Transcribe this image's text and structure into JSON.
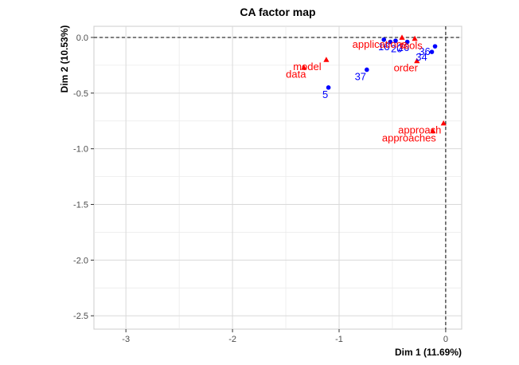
{
  "chart_data": {
    "type": "scatter",
    "title": "CA factor map",
    "xlabel": "Dim 1 (11.69%)",
    "ylabel": "Dim 2 (10.53%)",
    "xlim": [
      -3.3,
      0.15
    ],
    "ylim": [
      -2.62,
      0.1
    ],
    "x_ticks": [
      -3,
      -2,
      -1,
      0
    ],
    "y_ticks": [
      0.0,
      -0.5,
      -1.0,
      -1.5,
      -2.0,
      -2.5
    ],
    "x_tick_labels": [
      "-3",
      "-2",
      "-1",
      "0"
    ],
    "y_tick_labels": [
      "0.0",
      "-0.5",
      "-1.0",
      "-1.5",
      "-2.0",
      "-2.5"
    ],
    "grid": true,
    "reference_lines": {
      "x": 0,
      "y": 0,
      "style": "dashed"
    },
    "colors": {
      "rows": "#0000ff",
      "columns": "#ff0000",
      "grid": "#d9d9d9"
    },
    "series": [
      {
        "marker": "circle",
        "color": "#0000ff",
        "points": [
          {
            "label": "5",
            "x": -1.1,
            "y": -0.45,
            "dx": -4,
            "dy": 13
          },
          {
            "label": "37",
            "x": -0.74,
            "y": -0.29,
            "dx": -8,
            "dy": 13
          },
          {
            "label": "34",
            "x": -0.13,
            "y": -0.13,
            "dx": -13,
            "dy": 11
          },
          {
            "label": "36",
            "x": -0.1,
            "y": -0.08,
            "dx": -13,
            "dy": 11
          },
          {
            "label": "16",
            "x": -0.58,
            "y": -0.02,
            "dx": 0,
            "dy": 13
          },
          {
            "label": "20",
            "x": -0.52,
            "y": -0.04,
            "dx": 8,
            "dy": 13
          },
          {
            "label": "26",
            "x": -0.47,
            "y": -0.03,
            "dx": 10,
            "dy": 13
          },
          {
            "label": "",
            "x": -0.36,
            "y": -0.04,
            "dx": 0,
            "dy": 0
          }
        ]
      },
      {
        "marker": "triangle",
        "color": "#ff0000",
        "points": [
          {
            "label": "model",
            "x": -1.12,
            "y": -0.2,
            "dx": -24,
            "dy": 13
          },
          {
            "label": "data",
            "x": -1.33,
            "y": -0.27,
            "dx": -10,
            "dy": 13
          },
          {
            "label": "applications",
            "x": -0.41,
            "y": 0.0,
            "dx": -28,
            "dy": 13
          },
          {
            "label": "tools",
            "x": -0.29,
            "y": -0.01,
            "dx": -4,
            "dy": 13
          },
          {
            "label": "order",
            "x": -0.27,
            "y": -0.21,
            "dx": -14,
            "dy": 13
          },
          {
            "label": "approach",
            "x": -0.02,
            "y": -0.77,
            "dx": -30,
            "dy": 13
          },
          {
            "label": "approaches",
            "x": -0.12,
            "y": -0.84,
            "dx": -30,
            "dy": 13
          }
        ]
      }
    ]
  }
}
